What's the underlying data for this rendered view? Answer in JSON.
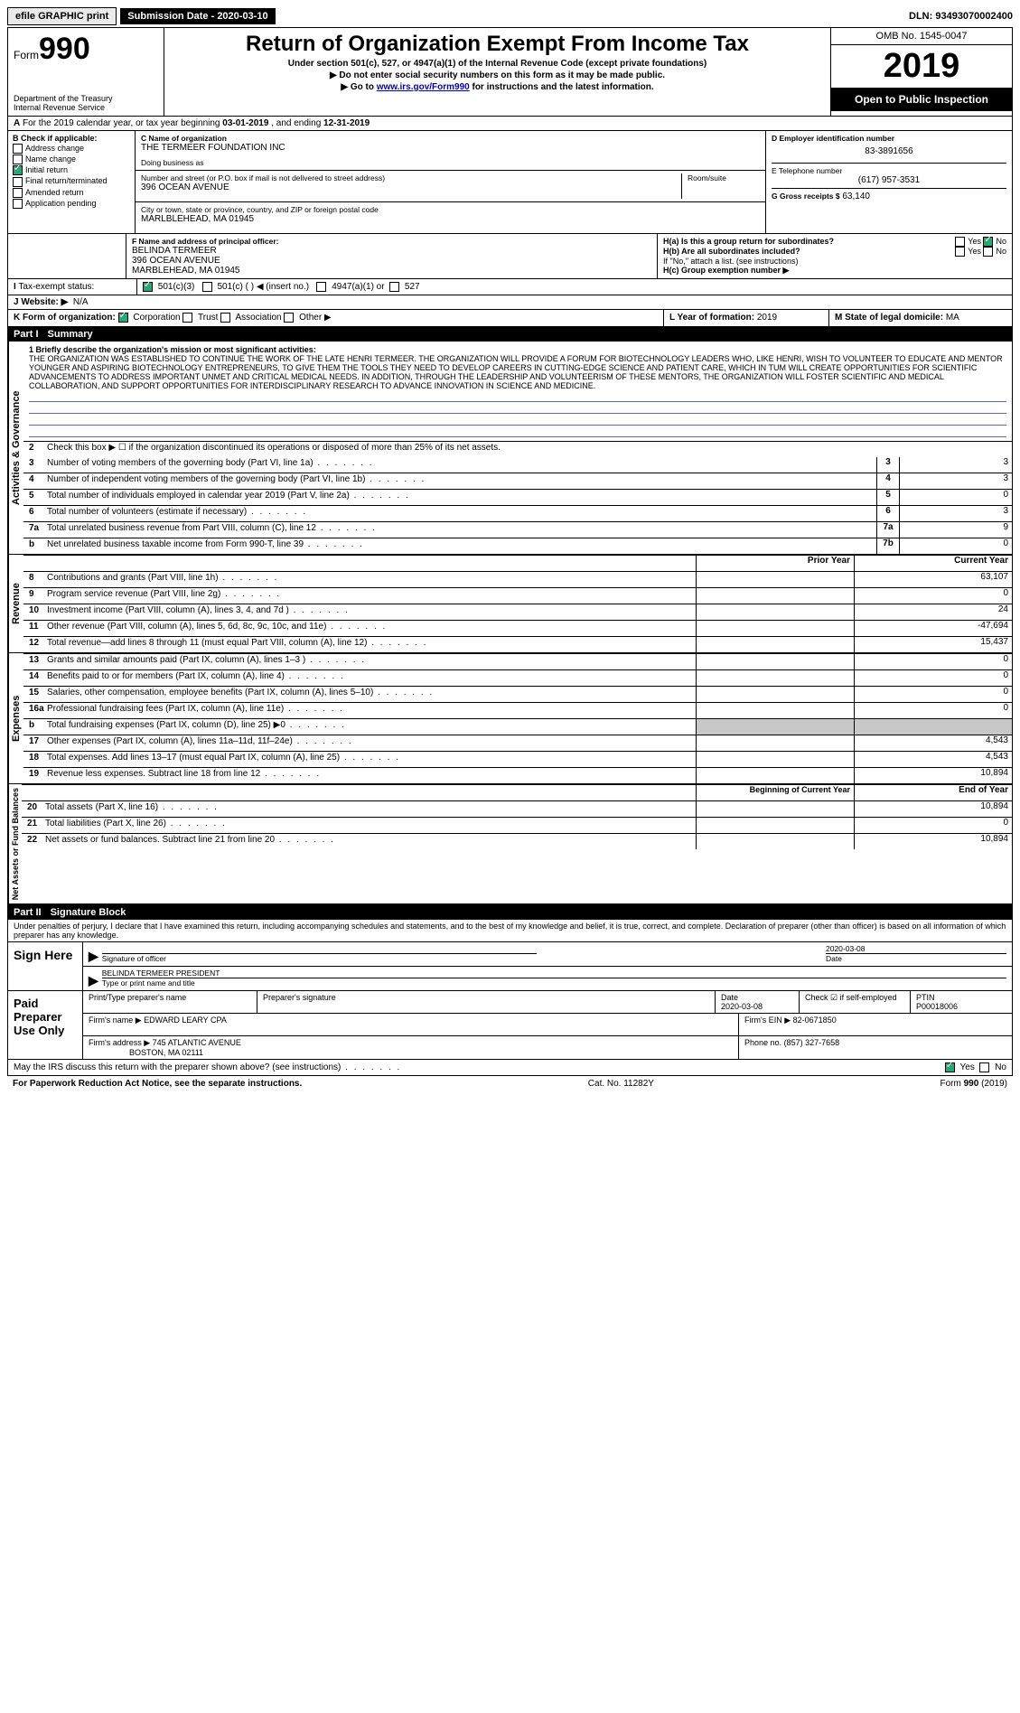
{
  "topbar": {
    "efile": "efile GRAPHIC print",
    "submission_label": "Submission Date - 2020-03-10",
    "dln": "DLN: 93493070002400"
  },
  "header": {
    "form_word": "Form",
    "form_num": "990",
    "dept1": "Department of the Treasury",
    "dept2": "Internal Revenue Service",
    "title": "Return of Organization Exempt From Income Tax",
    "sub1": "Under section 501(c), 527, or 4947(a)(1) of the Internal Revenue Code (except private foundations)",
    "sub2": "▶ Do not enter social security numbers on this form as it may be made public.",
    "sub3_pre": "▶ Go to ",
    "sub3_link": "www.irs.gov/Form990",
    "sub3_post": " for instructions and the latest information.",
    "omb": "OMB No. 1545-0047",
    "year": "2019",
    "open": "Open to Public Inspection"
  },
  "period": {
    "line_a": "A",
    "text1": "For the 2019 calendar year, or tax year beginning ",
    "start": "03-01-2019",
    "mid": " , and ending ",
    "end": "12-31-2019"
  },
  "sectionB": {
    "label": "B Check if applicable:",
    "addr_change": "Address change",
    "name_change": "Name change",
    "initial": "Initial return",
    "final": "Final return/terminated",
    "amended": "Amended return",
    "app_pending": "Application pending"
  },
  "sectionC": {
    "name_lbl": "C Name of organization",
    "name": "THE TERMEER FOUNDATION INC",
    "dba_lbl": "Doing business as",
    "dba": "",
    "street_lbl": "Number and street (or P.O. box if mail is not delivered to street address)",
    "room_lbl": "Room/suite",
    "street": "396 OCEAN AVENUE",
    "city_lbl": "City or town, state or province, country, and ZIP or foreign postal code",
    "city": "MARLBLEHEAD, MA  01945"
  },
  "sectionD": {
    "lbl": "D Employer identification number",
    "val": "83-3891656",
    "e_lbl": "E Telephone number",
    "e_val": "(617) 957-3531",
    "g_lbl": "G Gross receipts $",
    "g_val": "63,140"
  },
  "sectionF": {
    "lbl": "F  Name and address of principal officer:",
    "name": "BELINDA TERMEER",
    "street": "396 OCEAN AVENUE",
    "city": "MARBLEHEAD, MA  01945"
  },
  "sectionH": {
    "a_lbl": "H(a)  Is this a group return for subordinates?",
    "yes": "Yes",
    "no": "No",
    "b_lbl": "H(b)  Are all subordinates included?",
    "note": "If \"No,\" attach a list. (see instructions)",
    "c_lbl": "H(c)  Group exemption number ▶"
  },
  "taxexempt": {
    "lbl": "Tax-exempt status:",
    "o1": "501(c)(3)",
    "o2": "501(c) (   ) ◀ (insert no.)",
    "o3": "4947(a)(1) or",
    "o4": "527"
  },
  "website": {
    "lbl": "Website: ▶",
    "val": "N/A"
  },
  "sectionK": {
    "lbl": "K Form of organization:",
    "corp": "Corporation",
    "trust": "Trust",
    "assoc": "Association",
    "other": "Other ▶"
  },
  "sectionL": {
    "lbl": "L Year of formation:",
    "val": "2019"
  },
  "sectionM": {
    "lbl": "M State of legal domicile:",
    "val": "MA"
  },
  "part1": {
    "hdr": "Part I",
    "title": "Summary",
    "l1_lbl": "1  Briefly describe the organization's mission or most significant activities:",
    "mission": "THE ORGANIZATION WAS ESTABLISHED TO CONTINUE THE WORK OF THE LATE HENRI TERMEER. THE ORGANIZATION WILL PROVIDE A FORUM FOR BIOTECHNOLOGY LEADERS WHO, LIKE HENRI, WISH TO VOLUNTEER TO EDUCATE AND MENTOR YOUNGER AND ASPIRING BIOTECHNOLOGY ENTREPRENEURS, TO GIVE THEM THE TOOLS THEY NEED TO DEVELOP CAREERS IN CUTTING-EDGE SCIENCE AND PATIENT CARE, WHICH IN TUM WILL CREATE OPPORTUNITIES FOR SCIENTIFIC ADVANCEMENTS TO ADDRESS IMPORTANT UNMET AND CRITICAL MEDICAL NEEDS. IN ADDITION, THROUGH THE LEADERSHIP AND VOLUNTEERISM OF THESE MENTORS, THE ORGANIZATION WILL FOSTER SCIENTIFIC AND MEDICAL COLLABORATION, AND SUPPORT OPPORTUNITIES FOR INTERDISCIPLINARY RESEARCH TO ADVANCE INNOVATION IN SCIENCE AND MEDICINE.",
    "l2": "Check this box ▶ ☐  if the organization discontinued its operations or disposed of more than 25% of its net assets.",
    "side_gov": "Activities & Governance",
    "side_rev": "Revenue",
    "side_exp": "Expenses",
    "side_net": "Net Assets or Fund Balances",
    "rows_gov": [
      {
        "n": "3",
        "d": "Number of voting members of the governing body (Part VI, line 1a)",
        "box": "3",
        "v": "3"
      },
      {
        "n": "4",
        "d": "Number of independent voting members of the governing body (Part VI, line 1b)",
        "box": "4",
        "v": "3"
      },
      {
        "n": "5",
        "d": "Total number of individuals employed in calendar year 2019 (Part V, line 2a)",
        "box": "5",
        "v": "0"
      },
      {
        "n": "6",
        "d": "Total number of volunteers (estimate if necessary)",
        "box": "6",
        "v": "3"
      },
      {
        "n": "7a",
        "d": "Total unrelated business revenue from Part VIII, column (C), line 12",
        "box": "7a",
        "v": "9"
      },
      {
        "n": "b",
        "d": "Net unrelated business taxable income from Form 990-T, line 39",
        "box": "7b",
        "v": "0"
      }
    ],
    "col_prior": "Prior Year",
    "col_curr": "Current Year",
    "rows_rev": [
      {
        "n": "8",
        "d": "Contributions and grants (Part VIII, line 1h)",
        "p": "",
        "c": "63,107"
      },
      {
        "n": "9",
        "d": "Program service revenue (Part VIII, line 2g)",
        "p": "",
        "c": "0"
      },
      {
        "n": "10",
        "d": "Investment income (Part VIII, column (A), lines 3, 4, and 7d )",
        "p": "",
        "c": "24"
      },
      {
        "n": "11",
        "d": "Other revenue (Part VIII, column (A), lines 5, 6d, 8c, 9c, 10c, and 11e)",
        "p": "",
        "c": "-47,694"
      },
      {
        "n": "12",
        "d": "Total revenue—add lines 8 through 11 (must equal Part VIII, column (A), line 12)",
        "p": "",
        "c": "15,437"
      }
    ],
    "rows_exp": [
      {
        "n": "13",
        "d": "Grants and similar amounts paid (Part IX, column (A), lines 1–3 )",
        "p": "",
        "c": "0"
      },
      {
        "n": "14",
        "d": "Benefits paid to or for members (Part IX, column (A), line 4)",
        "p": "",
        "c": "0"
      },
      {
        "n": "15",
        "d": "Salaries, other compensation, employee benefits (Part IX, column (A), lines 5–10)",
        "p": "",
        "c": "0"
      },
      {
        "n": "16a",
        "d": "Professional fundraising fees (Part IX, column (A), line 11e)",
        "p": "",
        "c": "0"
      },
      {
        "n": "b",
        "d": "Total fundraising expenses (Part IX, column (D), line 25) ▶0",
        "p": "shade",
        "c": "shade"
      },
      {
        "n": "17",
        "d": "Other expenses (Part IX, column (A), lines 11a–11d, 11f–24e)",
        "p": "",
        "c": "4,543"
      },
      {
        "n": "18",
        "d": "Total expenses. Add lines 13–17 (must equal Part IX, column (A), line 25)",
        "p": "",
        "c": "4,543"
      },
      {
        "n": "19",
        "d": "Revenue less expenses. Subtract line 18 from line 12",
        "p": "",
        "c": "10,894"
      }
    ],
    "col_begin": "Beginning of Current Year",
    "col_end": "End of Year",
    "rows_net": [
      {
        "n": "20",
        "d": "Total assets (Part X, line 16)",
        "p": "",
        "c": "10,894"
      },
      {
        "n": "21",
        "d": "Total liabilities (Part X, line 26)",
        "p": "",
        "c": "0"
      },
      {
        "n": "22",
        "d": "Net assets or fund balances. Subtract line 21 from line 20",
        "p": "",
        "c": "10,894"
      }
    ]
  },
  "part2": {
    "hdr": "Part II",
    "title": "Signature Block",
    "decl": "Under penalties of perjury, I declare that I have examined this return, including accompanying schedules and statements, and to the best of my knowledge and belief, it is true, correct, and complete. Declaration of preparer (other than officer) is based on all information of which preparer has any knowledge.",
    "sign_here": "Sign Here",
    "sig_officer": "Signature of officer",
    "date_lbl": "Date",
    "date_val": "2020-03-08",
    "name_title": "BELINDA TERMEER  PRESIDENT",
    "type_lbl": "Type or print name and title",
    "paid": "Paid Preparer Use Only",
    "p_name_lbl": "Print/Type preparer's name",
    "p_sig_lbl": "Preparer's signature",
    "p_date_lbl": "Date",
    "p_date": "2020-03-08",
    "p_self_lbl": "Check ☑ if self-employed",
    "ptin_lbl": "PTIN",
    "ptin": "P00018006",
    "firm_name_lbl": "Firm's name   ▶",
    "firm_name": "EDWARD LEARY CPA",
    "firm_ein_lbl": "Firm's EIN ▶",
    "firm_ein": "82-0671850",
    "firm_addr_lbl": "Firm's address ▶",
    "firm_addr1": "745 ATLANTIC AVENUE",
    "firm_addr2": "BOSTON, MA  02111",
    "phone_lbl": "Phone no.",
    "phone": "(857) 327-7658",
    "discuss": "May the IRS discuss this return with the preparer shown above? (see instructions)",
    "d_yes": "Yes",
    "d_no": "No"
  },
  "footer": {
    "left": "For Paperwork Reduction Act Notice, see the separate instructions.",
    "mid": "Cat. No. 11282Y",
    "right": "Form 990 (2019)"
  }
}
